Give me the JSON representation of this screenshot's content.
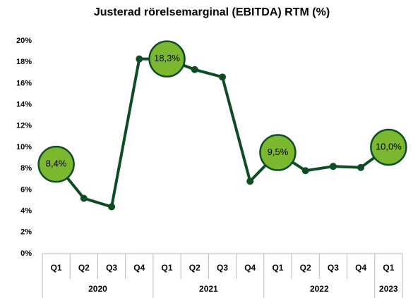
{
  "chart_data": {
    "type": "line",
    "title": "Justerad rörelsemarginal (EBITDA) RTM (%)",
    "category_groups": [
      {
        "year": "2020",
        "quarters": [
          "Q1",
          "Q2",
          "Q3",
          "Q4"
        ]
      },
      {
        "year": "2021",
        "quarters": [
          "Q1",
          "Q2",
          "Q3",
          "Q4"
        ]
      },
      {
        "year": "2022",
        "quarters": [
          "Q1",
          "Q2",
          "Q3",
          "Q4"
        ]
      },
      {
        "year": "2023",
        "quarters": [
          "Q1"
        ]
      }
    ],
    "values": [
      8.4,
      5.2,
      4.4,
      18.3,
      18.3,
      17.3,
      16.6,
      6.8,
      9.5,
      7.8,
      8.2,
      8.1,
      10.0
    ],
    "value_labels": [
      "8,4%",
      null,
      null,
      null,
      "18,3%",
      null,
      null,
      null,
      "9,5%",
      null,
      null,
      null,
      "10,0%"
    ],
    "color": "#0e4d24",
    "bubble_color": "#7cb82f",
    "ylim": [
      0,
      20
    ],
    "yticks": [
      {
        "value": 0,
        "label": "0%"
      },
      {
        "value": 2,
        "label": "2%"
      },
      {
        "value": 4,
        "label": "4%"
      },
      {
        "value": 6,
        "label": "6%"
      },
      {
        "value": 8,
        "label": "8%"
      },
      {
        "value": 10,
        "label": "10%"
      },
      {
        "value": 12,
        "label": "12%"
      },
      {
        "value": 14,
        "label": "14%"
      },
      {
        "value": 16,
        "label": "16%"
      },
      {
        "value": 18,
        "label": "18%"
      },
      {
        "value": 20,
        "label": "20%"
      }
    ],
    "grid": false
  }
}
